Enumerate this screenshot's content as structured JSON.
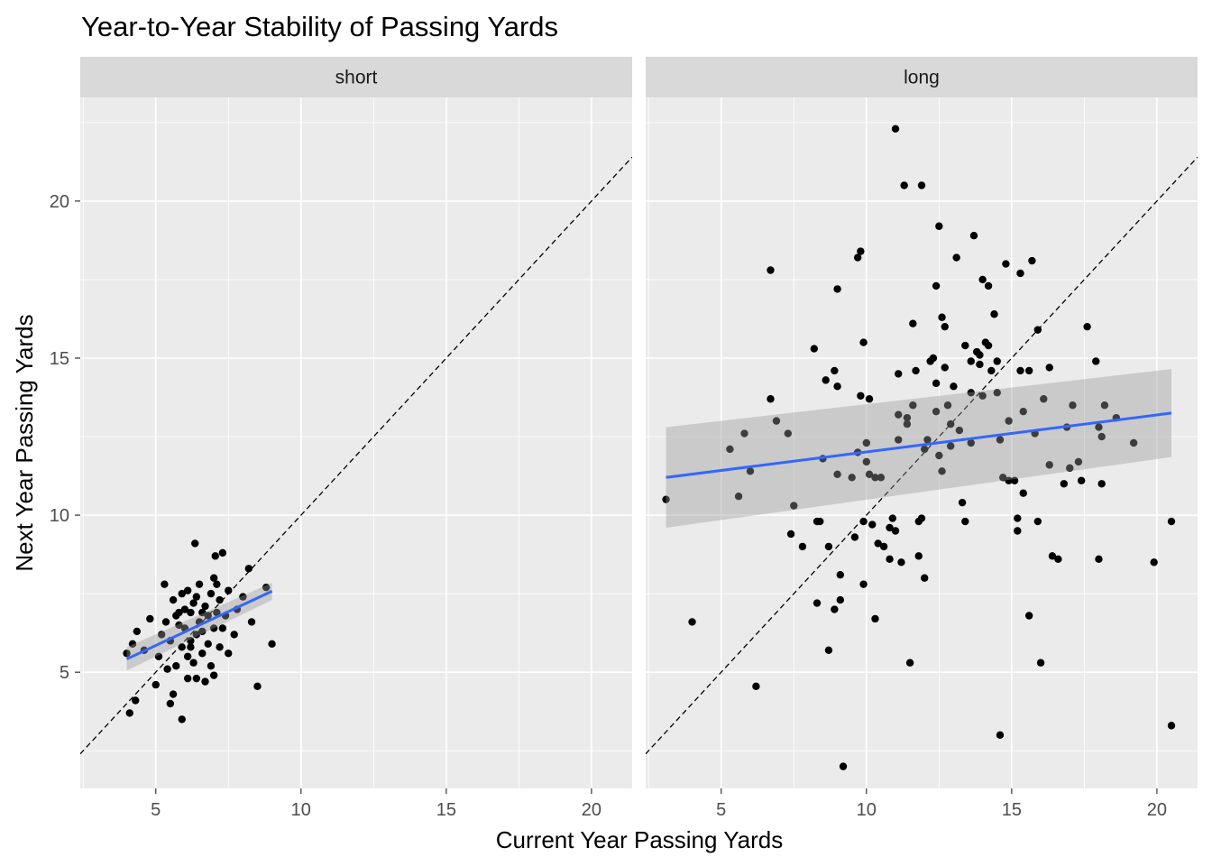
{
  "chart_data": {
    "type": "scatter",
    "title": "Year-to-Year Stability of Passing Yards",
    "xlabel": "Current Year Passing Yards",
    "ylabel": "Next Year Passing Yards",
    "xlim": [
      2.4,
      21.4
    ],
    "ylim": [
      1.3,
      23.3
    ],
    "x_ticks": [
      5,
      10,
      15,
      20
    ],
    "y_ticks": [
      5,
      10,
      15,
      20
    ],
    "grid": true,
    "reference_line": {
      "style": "dashed",
      "slope": 1,
      "intercept": 0
    },
    "facets": [
      {
        "label": "short",
        "fit": {
          "x": [
            4.0,
            9.0
          ],
          "y": [
            5.42,
            7.58
          ],
          "ci_low": [
            5.05,
            7.3
          ],
          "ci_high": [
            5.8,
            7.85
          ]
        },
        "points": [
          [
            4.0,
            5.6
          ],
          [
            4.1,
            3.7
          ],
          [
            4.2,
            5.9
          ],
          [
            4.3,
            4.1
          ],
          [
            4.35,
            6.3
          ],
          [
            4.6,
            5.7
          ],
          [
            4.8,
            6.7
          ],
          [
            5.0,
            4.6
          ],
          [
            5.1,
            5.5
          ],
          [
            5.2,
            6.2
          ],
          [
            5.3,
            7.8
          ],
          [
            5.35,
            6.6
          ],
          [
            5.5,
            6.0
          ],
          [
            5.5,
            4.0
          ],
          [
            5.6,
            7.3
          ],
          [
            5.6,
            4.3
          ],
          [
            5.7,
            6.8
          ],
          [
            5.7,
            5.2
          ],
          [
            5.8,
            6.5
          ],
          [
            5.9,
            3.5
          ],
          [
            5.9,
            7.5
          ],
          [
            5.9,
            5.8
          ],
          [
            6.0,
            6.4
          ],
          [
            6.0,
            7.0
          ],
          [
            6.1,
            4.8
          ],
          [
            6.1,
            7.6
          ],
          [
            6.1,
            5.5
          ],
          [
            6.2,
            6.0
          ],
          [
            6.2,
            6.9
          ],
          [
            6.3,
            5.3
          ],
          [
            6.3,
            7.2
          ],
          [
            6.35,
            9.1
          ],
          [
            6.4,
            6.2
          ],
          [
            6.4,
            4.8
          ],
          [
            6.5,
            6.6
          ],
          [
            6.5,
            7.8
          ],
          [
            6.6,
            5.6
          ],
          [
            6.6,
            6.3
          ],
          [
            6.7,
            7.1
          ],
          [
            6.7,
            4.7
          ],
          [
            6.8,
            5.9
          ],
          [
            6.8,
            6.8
          ],
          [
            6.9,
            7.5
          ],
          [
            6.9,
            5.2
          ],
          [
            7.0,
            6.4
          ],
          [
            7.0,
            8.0
          ],
          [
            7.0,
            4.9
          ],
          [
            7.05,
            8.7
          ],
          [
            7.1,
            6.9
          ],
          [
            7.2,
            5.8
          ],
          [
            7.2,
            7.3
          ],
          [
            7.3,
            8.8
          ],
          [
            7.3,
            6.4
          ],
          [
            7.4,
            6.8
          ],
          [
            7.5,
            5.6
          ],
          [
            7.5,
            7.6
          ],
          [
            7.7,
            6.2
          ],
          [
            7.8,
            7.0
          ],
          [
            8.0,
            7.4
          ],
          [
            8.2,
            8.3
          ],
          [
            8.3,
            6.6
          ],
          [
            8.5,
            4.55
          ],
          [
            8.8,
            7.7
          ],
          [
            9.0,
            5.9
          ],
          [
            6.6,
            6.9
          ],
          [
            6.2,
            5.8
          ],
          [
            5.8,
            6.9
          ],
          [
            7.1,
            7.8
          ],
          [
            6.4,
            7.4
          ],
          [
            5.4,
            5.1
          ]
        ]
      },
      {
        "label": "long",
        "fit": {
          "x": [
            3.1,
            20.5
          ],
          "y": [
            11.2,
            13.25
          ],
          "ci_low": [
            9.6,
            11.85
          ],
          "ci_high": [
            12.8,
            14.65
          ]
        },
        "points": [
          [
            3.1,
            10.5
          ],
          [
            4.0,
            6.6
          ],
          [
            5.3,
            12.1
          ],
          [
            5.6,
            10.6
          ],
          [
            5.8,
            12.6
          ],
          [
            6.0,
            11.4
          ],
          [
            6.2,
            4.55
          ],
          [
            6.7,
            17.8
          ],
          [
            6.7,
            13.7
          ],
          [
            6.9,
            13.0
          ],
          [
            7.3,
            12.6
          ],
          [
            7.4,
            9.4
          ],
          [
            7.5,
            10.3
          ],
          [
            7.8,
            9.0
          ],
          [
            8.2,
            15.3
          ],
          [
            8.3,
            9.8
          ],
          [
            8.3,
            7.2
          ],
          [
            8.4,
            9.8
          ],
          [
            8.5,
            11.8
          ],
          [
            8.6,
            14.3
          ],
          [
            8.7,
            5.7
          ],
          [
            8.7,
            9.0
          ],
          [
            8.9,
            14.6
          ],
          [
            8.9,
            7.0
          ],
          [
            9.0,
            17.2
          ],
          [
            9.0,
            14.1
          ],
          [
            9.0,
            11.3
          ],
          [
            9.1,
            8.1
          ],
          [
            9.1,
            7.3
          ],
          [
            9.2,
            2.0
          ],
          [
            9.5,
            11.2
          ],
          [
            9.6,
            9.3
          ],
          [
            9.7,
            18.2
          ],
          [
            9.7,
            12.0
          ],
          [
            9.8,
            18.4
          ],
          [
            9.8,
            13.8
          ],
          [
            9.9,
            15.5
          ],
          [
            9.9,
            9.8
          ],
          [
            9.9,
            7.8
          ],
          [
            10.0,
            12.3
          ],
          [
            10.0,
            11.7
          ],
          [
            10.1,
            13.7
          ],
          [
            10.1,
            11.3
          ],
          [
            10.2,
            9.7
          ],
          [
            10.3,
            6.7
          ],
          [
            10.3,
            11.2
          ],
          [
            10.4,
            9.1
          ],
          [
            10.5,
            11.2
          ],
          [
            10.6,
            9.0
          ],
          [
            10.8,
            8.6
          ],
          [
            10.8,
            9.6
          ],
          [
            10.9,
            9.9
          ],
          [
            11.0,
            22.3
          ],
          [
            11.0,
            9.5
          ],
          [
            11.1,
            14.5
          ],
          [
            11.1,
            13.2
          ],
          [
            11.1,
            12.4
          ],
          [
            11.2,
            8.5
          ],
          [
            11.3,
            20.5
          ],
          [
            11.4,
            13.1
          ],
          [
            11.4,
            12.9
          ],
          [
            11.5,
            5.3
          ],
          [
            11.6,
            16.1
          ],
          [
            11.6,
            13.5
          ],
          [
            11.7,
            14.6
          ],
          [
            11.8,
            9.8
          ],
          [
            11.8,
            8.7
          ],
          [
            11.9,
            20.5
          ],
          [
            11.9,
            9.9
          ],
          [
            12.0,
            12.1
          ],
          [
            12.0,
            8.0
          ],
          [
            12.1,
            12.4
          ],
          [
            12.2,
            14.9
          ],
          [
            12.3,
            15.0
          ],
          [
            12.4,
            17.3
          ],
          [
            12.4,
            14.2
          ],
          [
            12.4,
            13.3
          ],
          [
            12.5,
            19.2
          ],
          [
            12.5,
            11.9
          ],
          [
            12.6,
            16.3
          ],
          [
            12.6,
            11.4
          ],
          [
            12.7,
            16.0
          ],
          [
            12.7,
            14.7
          ],
          [
            12.8,
            13.5
          ],
          [
            12.9,
            12.9
          ],
          [
            12.9,
            12.2
          ],
          [
            13.0,
            14.1
          ],
          [
            13.1,
            18.2
          ],
          [
            13.2,
            12.7
          ],
          [
            13.3,
            10.4
          ],
          [
            13.4,
            15.4
          ],
          [
            13.4,
            9.8
          ],
          [
            13.6,
            14.9
          ],
          [
            13.6,
            13.9
          ],
          [
            13.6,
            12.3
          ],
          [
            13.7,
            18.9
          ],
          [
            13.8,
            15.2
          ],
          [
            13.9,
            15.1
          ],
          [
            13.9,
            14.8
          ],
          [
            14.0,
            17.5
          ],
          [
            14.0,
            13.8
          ],
          [
            14.1,
            15.5
          ],
          [
            14.2,
            15.4
          ],
          [
            14.2,
            17.3
          ],
          [
            14.3,
            14.6
          ],
          [
            14.4,
            16.4
          ],
          [
            14.5,
            14.9
          ],
          [
            14.5,
            13.9
          ],
          [
            14.6,
            12.4
          ],
          [
            14.6,
            3.0
          ],
          [
            14.7,
            11.2
          ],
          [
            14.8,
            18.0
          ],
          [
            14.9,
            13.0
          ],
          [
            14.9,
            11.1
          ],
          [
            15.1,
            11.1
          ],
          [
            15.2,
            9.9
          ],
          [
            15.2,
            9.5
          ],
          [
            15.3,
            14.6
          ],
          [
            15.3,
            17.7
          ],
          [
            15.4,
            13.3
          ],
          [
            15.4,
            10.7
          ],
          [
            15.6,
            6.8
          ],
          [
            15.6,
            14.6
          ],
          [
            15.7,
            18.1
          ],
          [
            15.8,
            12.6
          ],
          [
            15.9,
            15.9
          ],
          [
            15.9,
            9.8
          ],
          [
            16.0,
            5.3
          ],
          [
            16.1,
            13.7
          ],
          [
            16.3,
            14.7
          ],
          [
            16.3,
            11.6
          ],
          [
            16.4,
            8.7
          ],
          [
            16.6,
            8.6
          ],
          [
            16.8,
            11.0
          ],
          [
            16.9,
            12.8
          ],
          [
            17.0,
            11.5
          ],
          [
            17.1,
            13.5
          ],
          [
            17.3,
            11.7
          ],
          [
            17.4,
            11.1
          ],
          [
            17.6,
            16.0
          ],
          [
            17.9,
            14.9
          ],
          [
            18.0,
            12.8
          ],
          [
            18.0,
            8.6
          ],
          [
            18.1,
            12.5
          ],
          [
            18.1,
            11.0
          ],
          [
            18.2,
            13.5
          ],
          [
            18.6,
            13.1
          ],
          [
            19.2,
            12.3
          ],
          [
            19.9,
            8.5
          ],
          [
            20.5,
            9.8
          ],
          [
            20.5,
            3.3
          ]
        ]
      }
    ]
  },
  "colors": {
    "panel_background": "#ebebeb",
    "strip_background": "#d9d9d9",
    "grid_line": "#ffffff",
    "point": "#000000",
    "fit_line": "#3366ff",
    "confidence_band": "#999999",
    "reference_line": "#000000"
  }
}
